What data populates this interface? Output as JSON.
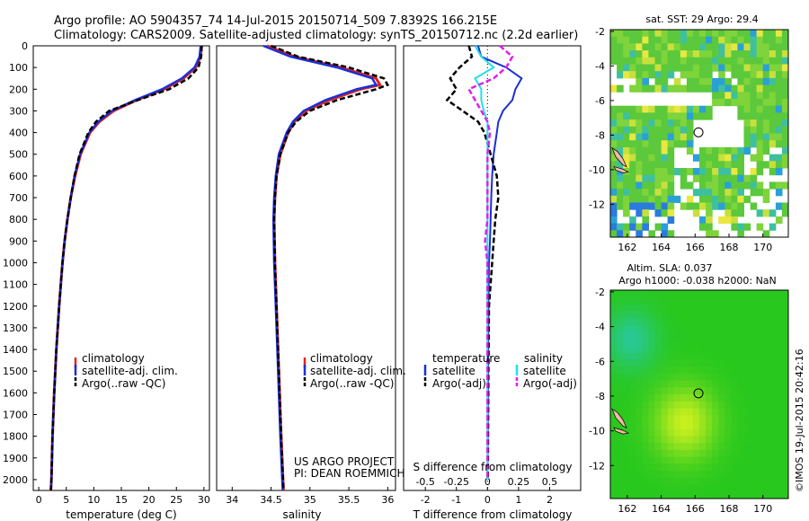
{
  "header": {
    "line1": "Argo profile: AO 5904357_74 14-Jul-2015 20150714_509 7.8392S 166.215E",
    "line2": "Climatology: CARS2009. Satellite-adjusted climatology: synTS_20150712.nc (2.2d earlier)"
  },
  "credit": "US ARGO PROJECT",
  "pi": "PI: DEAN ROEMMICH",
  "stamp": "©IMOS 19-Jul-2015 20:42:16",
  "colors": {
    "climatology": "#e8201c",
    "satellite": "#1a2fd6",
    "argo": "#000000",
    "s_satellite": "#22e0e6",
    "s_argo": "#e020e8"
  },
  "chart_data": [
    {
      "type": "line",
      "id": "temperature",
      "xlabel": "temperature (deg C)",
      "ylim": [
        2050,
        0
      ],
      "xlim": [
        -1,
        31
      ],
      "x_ticks": [
        0,
        5,
        10,
        15,
        20,
        25,
        30
      ],
      "y_ticks": [
        0,
        100,
        200,
        300,
        400,
        500,
        600,
        700,
        800,
        900,
        1000,
        1100,
        1200,
        1300,
        1400,
        1500,
        1600,
        1700,
        1800,
        1900,
        2000
      ],
      "legend": [
        "climatology",
        "satellite-adj. clim.",
        "Argo(..raw -QC)"
      ],
      "depth": [
        0,
        50,
        100,
        150,
        200,
        250,
        300,
        350,
        400,
        500,
        600,
        700,
        800,
        900,
        1000,
        1200,
        1400,
        1600,
        1800,
        2000,
        2050
      ],
      "series": [
        {
          "name": "climatology",
          "values": [
            29.6,
            29.4,
            28.5,
            26.3,
            22.8,
            17.8,
            13.6,
            11.0,
            9.3,
            7.6,
            6.6,
            5.8,
            5.2,
            4.7,
            4.3,
            3.7,
            3.2,
            2.8,
            2.5,
            2.3,
            2.2
          ]
        },
        {
          "name": "satellite-adj. clim.",
          "values": [
            29.4,
            29.2,
            28.3,
            26.0,
            22.4,
            17.5,
            13.3,
            10.8,
            9.2,
            7.5,
            6.5,
            5.8,
            5.2,
            4.7,
            4.3,
            3.7,
            3.2,
            2.8,
            2.5,
            2.3,
            2.2
          ]
        },
        {
          "name": "Argo(..raw -QC)",
          "values": [
            29.6,
            29.5,
            29.0,
            27.2,
            23.7,
            18.0,
            12.8,
            10.4,
            9.0,
            7.4,
            6.5,
            5.8,
            5.2,
            4.7,
            4.3,
            3.7,
            3.2,
            2.8,
            2.5,
            2.3,
            2.2
          ]
        }
      ]
    },
    {
      "type": "line",
      "id": "salinity",
      "xlabel": "salinity",
      "ylim": [
        2050,
        0
      ],
      "xlim": [
        33.8,
        36.1
      ],
      "x_ticks": [
        34,
        34.5,
        35,
        35.5,
        36
      ],
      "legend": [
        "climatology",
        "satellite-adj. clim.",
        "Argo(..raw -QC)"
      ],
      "depth": [
        0,
        50,
        100,
        150,
        180,
        200,
        250,
        300,
        350,
        400,
        500,
        600,
        700,
        800,
        1000,
        1200,
        1500,
        1800,
        2050
      ],
      "series": [
        {
          "name": "climatology",
          "values": [
            34.45,
            34.8,
            35.4,
            35.85,
            35.9,
            35.65,
            35.25,
            34.95,
            34.8,
            34.72,
            34.62,
            34.57,
            34.55,
            34.54,
            34.55,
            34.57,
            34.6,
            34.63,
            34.66
          ]
        },
        {
          "name": "satellite-adj. clim.",
          "values": [
            34.4,
            34.75,
            35.35,
            35.8,
            35.85,
            35.6,
            35.2,
            34.92,
            34.78,
            34.7,
            34.6,
            34.56,
            34.54,
            34.53,
            34.54,
            34.56,
            34.59,
            34.62,
            34.65
          ]
        },
        {
          "name": "Argo(..raw -QC)",
          "values": [
            34.5,
            34.85,
            35.5,
            35.95,
            36.0,
            35.85,
            35.35,
            35.0,
            34.82,
            34.72,
            34.62,
            34.57,
            34.55,
            34.54,
            34.55,
            34.57,
            34.6,
            34.63,
            34.66
          ]
        }
      ]
    },
    {
      "type": "line",
      "id": "difference",
      "xlabel": "T difference from climatology",
      "xlabel2": "S difference from climatology",
      "xlim": [
        -2.7,
        3.0
      ],
      "x_ticks": [
        -2,
        -1,
        0,
        1,
        2
      ],
      "s_ticks": [
        "-0.5",
        "-0.25",
        "0",
        "0.25",
        "0.5"
      ],
      "legend_t_title": "temperature",
      "legend_s_title": "salinity",
      "legend": [
        "satellite",
        "Argo(-adj)",
        "satellite",
        "Argo(-adj)"
      ],
      "depth": [
        0,
        50,
        100,
        150,
        200,
        250,
        300,
        350,
        400,
        500,
        600,
        700,
        800,
        900,
        1000,
        1200,
        1500,
        1800,
        2000
      ],
      "series": [
        {
          "name": "T satellite",
          "values": [
            -0.3,
            -0.2,
            0.6,
            1.1,
            0.9,
            0.8,
            0.5,
            0.35,
            0.3,
            0.2,
            0.15,
            0.12,
            0.1,
            0.08,
            0.05,
            0.03,
            0.02,
            0.01,
            0.0
          ]
        },
        {
          "name": "T Argo(-adj)",
          "values": [
            -0.6,
            -0.5,
            -0.9,
            -1.2,
            -1.0,
            -1.3,
            -0.8,
            -0.3,
            -0.1,
            0.1,
            0.3,
            0.35,
            0.25,
            0.2,
            0.15,
            0.05,
            0.03,
            0.02,
            0.01
          ]
        },
        {
          "name": "S satellite",
          "values": [
            -0.1,
            -0.05,
            0.05,
            -0.1,
            -0.05,
            -0.05,
            -0.03,
            0.0,
            0.0,
            0.0,
            0.0,
            0.0,
            0.0,
            0.0,
            0.0,
            0.0,
            0.0,
            0.0,
            0.0
          ]
        },
        {
          "name": "S Argo(-adj)",
          "values": [
            0.1,
            0.2,
            0.15,
            0.05,
            -0.15,
            -0.1,
            -0.05,
            0.0,
            0.02,
            0.0,
            0.0,
            0.0,
            0.0,
            -0.02,
            0.0,
            0.0,
            0.0,
            0.0,
            0.0
          ]
        }
      ]
    },
    {
      "type": "heatmap",
      "id": "sst-map",
      "title": "sat. SST: 29 Argo: 29.4",
      "x_ticks": [
        162,
        164,
        166,
        168,
        170
      ],
      "y_ticks": [
        -2,
        -4,
        -6,
        -8,
        -10,
        -12
      ],
      "xlim": [
        161,
        171.5
      ],
      "ylim": [
        -13.9,
        -1.9
      ],
      "argo_position": [
        166.2,
        -7.84
      ]
    },
    {
      "type": "heatmap",
      "id": "sla-map",
      "title": "Altim. SLA: 0.037",
      "subtitle": "Argo h1000: -0.038 h2000: NaN",
      "x_ticks": [
        162,
        164,
        166,
        168,
        170
      ],
      "y_ticks": [
        -2,
        -4,
        -6,
        -8,
        -10,
        -12
      ],
      "xlim": [
        161,
        171.5
      ],
      "ylim": [
        -13.9,
        -1.9
      ],
      "argo_position": [
        166.2,
        -7.84
      ]
    }
  ]
}
